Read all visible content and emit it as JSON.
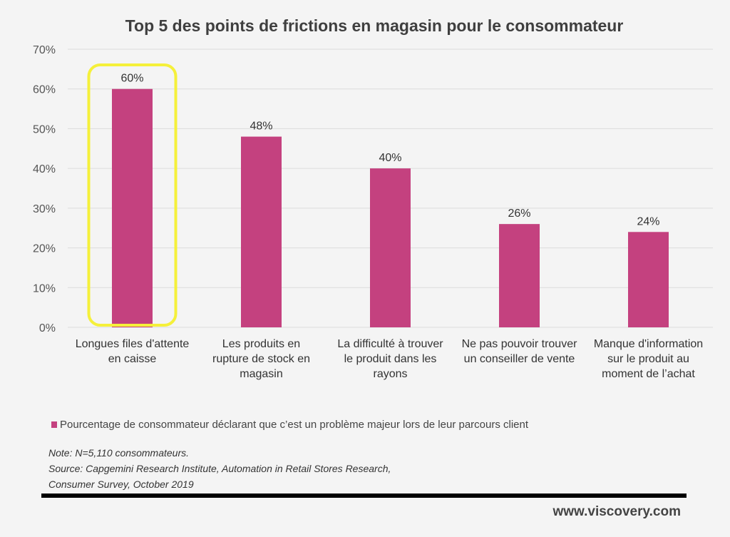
{
  "chart_data": {
    "type": "bar",
    "title": "Top 5 des points de frictions en magasin pour le consommateur",
    "categories": [
      [
        "Longues files d'attente",
        "en caisse"
      ],
      [
        "Les produits en",
        "rupture de stock en",
        "magasin"
      ],
      [
        "La difficulté à trouver",
        "le produit dans les",
        "rayons"
      ],
      [
        "Ne pas pouvoir trouver",
        "un conseiller de vente"
      ],
      [
        "Manque d'information",
        "sur le produit au",
        "moment de l’achat"
      ]
    ],
    "series": [
      {
        "name": "Pourcentage de consommateur déclarant que c’est un problème majeur lors de leur parcours client",
        "values": [
          60,
          48,
          40,
          26,
          24
        ],
        "color": "#c4417f"
      }
    ],
    "data_labels": [
      "60%",
      "48%",
      "40%",
      "26%",
      "24%"
    ],
    "ylim": [
      0,
      70
    ],
    "yticks": [
      "0%",
      "10%",
      "20%",
      "30%",
      "40%",
      "50%",
      "60%",
      "70%"
    ],
    "grid": true,
    "legend_position": "bottom-left",
    "highlight": {
      "category_index": 0,
      "color": "#f5f03a"
    }
  },
  "notes": [
    "Note: N=5,110 consommateurs.",
    "Source: Capgemini Research Institute, Automation in Retail Stores Research,",
    "Consumer Survey, October 2019"
  ],
  "website": "www.viscovery.com"
}
